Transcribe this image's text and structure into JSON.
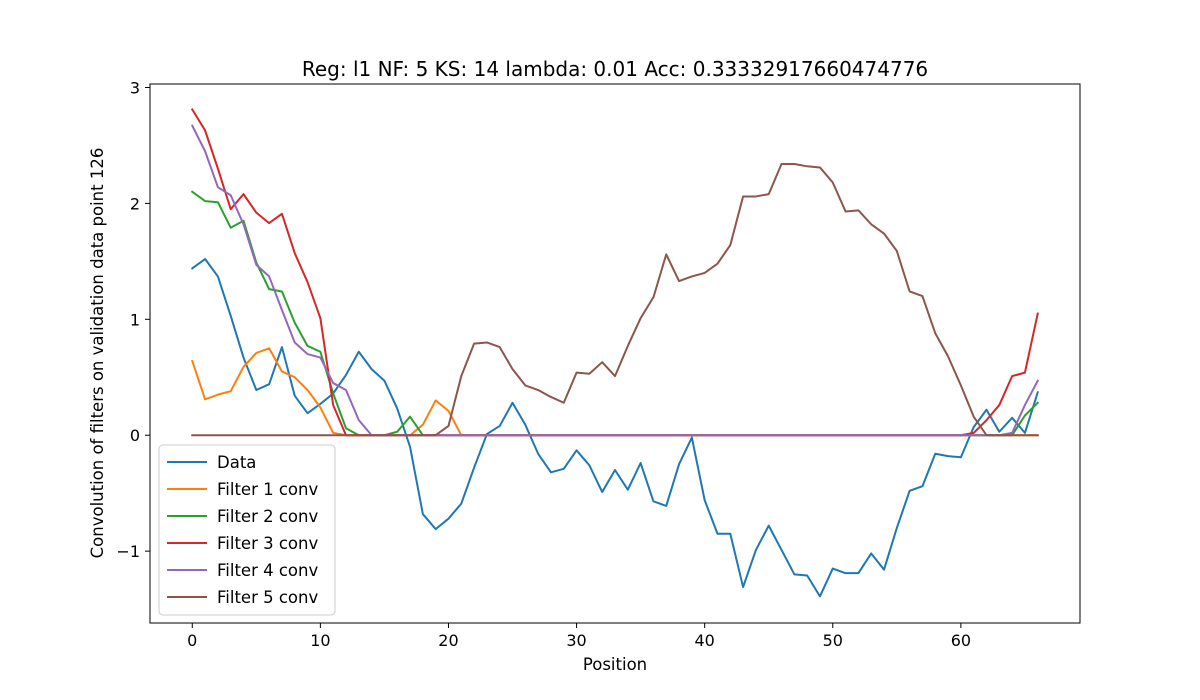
{
  "chart_data": {
    "type": "line",
    "title": "Reg: l1  NF: 5  KS: 14  lambda: 0.01 Acc: 0.33332917660474776",
    "xlabel": "Position",
    "ylabel": "Convolution of filters on validation data point 126",
    "xlim": [
      -3.3,
      69.3
    ],
    "ylim": [
      -1.62,
      3.03
    ],
    "xticks": [
      0,
      10,
      20,
      30,
      40,
      50,
      60
    ],
    "yticks": [
      -1,
      0,
      1,
      2,
      3
    ],
    "ytick_labels": [
      "−1",
      "0",
      "1",
      "2",
      "3"
    ],
    "grid": false,
    "legend_position": "lower-left",
    "series": [
      {
        "name": "Data",
        "color": "#1f77b4",
        "values": [
          1.44,
          1.52,
          1.37,
          1.03,
          0.67,
          0.39,
          0.44,
          0.76,
          0.34,
          0.19,
          0.27,
          0.36,
          0.52,
          0.72,
          0.57,
          0.47,
          0.23,
          -0.1,
          -0.68,
          -0.81,
          -0.72,
          -0.59,
          -0.28,
          0.01,
          0.08,
          0.28,
          0.09,
          -0.16,
          -0.32,
          -0.29,
          -0.13,
          -0.26,
          -0.49,
          -0.3,
          -0.47,
          -0.24,
          -0.57,
          -0.61,
          -0.25,
          -0.02,
          -0.56,
          -0.85,
          -0.85,
          -1.31,
          -0.99,
          -0.78,
          -0.99,
          -1.2,
          -1.21,
          -1.39,
          -1.15,
          -1.19,
          -1.19,
          -1.02,
          -1.16,
          -0.8,
          -0.48,
          -0.44,
          -0.16,
          -0.18,
          -0.19,
          0.07,
          0.22,
          0.03,
          0.15,
          0.02,
          0.37
        ]
      },
      {
        "name": "Filter 1 conv",
        "color": "#ff7f0e",
        "values": [
          0.64,
          0.31,
          0.35,
          0.38,
          0.59,
          0.71,
          0.75,
          0.55,
          0.5,
          0.39,
          0.24,
          0.02,
          0.0,
          0.0,
          0.0,
          0.0,
          0.0,
          0.0,
          0.09,
          0.3,
          0.21,
          0.0,
          0.0,
          0.0,
          0.0,
          0.0,
          0.0,
          0.0,
          0.0,
          0.0,
          0.0,
          0.0,
          0.0,
          0.0,
          0.0,
          0.0,
          0.0,
          0.0,
          0.0,
          0.0,
          0.0,
          0.0,
          0.0,
          0.0,
          0.0,
          0.0,
          0.0,
          0.0,
          0.0,
          0.0,
          0.0,
          0.0,
          0.0,
          0.0,
          0.0,
          0.0,
          0.0,
          0.0,
          0.0,
          0.0,
          0.0,
          0.0,
          0.0,
          0.0,
          0.0,
          0.0,
          0.0
        ]
      },
      {
        "name": "Filter 2 conv",
        "color": "#2ca02c",
        "values": [
          2.1,
          2.02,
          2.01,
          1.79,
          1.85,
          1.49,
          1.26,
          1.24,
          0.97,
          0.77,
          0.72,
          0.36,
          0.06,
          0.0,
          0.0,
          0.0,
          0.03,
          0.16,
          0.0,
          0.0,
          0.0,
          0.0,
          0.0,
          0.0,
          0.0,
          0.0,
          0.0,
          0.0,
          0.0,
          0.0,
          0.0,
          0.0,
          0.0,
          0.0,
          0.0,
          0.0,
          0.0,
          0.0,
          0.0,
          0.0,
          0.0,
          0.0,
          0.0,
          0.0,
          0.0,
          0.0,
          0.0,
          0.0,
          0.0,
          0.0,
          0.0,
          0.0,
          0.0,
          0.0,
          0.0,
          0.0,
          0.0,
          0.0,
          0.0,
          0.0,
          0.0,
          0.0,
          0.0,
          0.0,
          0.0,
          0.17,
          0.28
        ]
      },
      {
        "name": "Filter 3 conv",
        "color": "#d62728",
        "values": [
          2.81,
          2.63,
          2.3,
          1.95,
          2.08,
          1.92,
          1.83,
          1.91,
          1.57,
          1.32,
          1.01,
          0.26,
          0.0,
          0.0,
          0.0,
          0.0,
          0.0,
          0.0,
          0.0,
          0.0,
          0.0,
          0.0,
          0.0,
          0.0,
          0.0,
          0.0,
          0.0,
          0.0,
          0.0,
          0.0,
          0.0,
          0.0,
          0.0,
          0.0,
          0.0,
          0.0,
          0.0,
          0.0,
          0.0,
          0.0,
          0.0,
          0.0,
          0.0,
          0.0,
          0.0,
          0.0,
          0.0,
          0.0,
          0.0,
          0.0,
          0.0,
          0.0,
          0.0,
          0.0,
          0.0,
          0.0,
          0.0,
          0.0,
          0.0,
          0.0,
          0.0,
          0.02,
          0.13,
          0.26,
          0.51,
          0.54,
          1.05
        ]
      },
      {
        "name": "Filter 4 conv",
        "color": "#9467bd",
        "values": [
          2.67,
          2.45,
          2.14,
          2.07,
          1.82,
          1.47,
          1.37,
          1.08,
          0.8,
          0.7,
          0.67,
          0.45,
          0.39,
          0.13,
          0.0,
          0.0,
          0.0,
          0.0,
          0.0,
          0.0,
          0.0,
          0.0,
          0.0,
          0.0,
          0.0,
          0.0,
          0.0,
          0.0,
          0.0,
          0.0,
          0.0,
          0.0,
          0.0,
          0.0,
          0.0,
          0.0,
          0.0,
          0.0,
          0.0,
          0.0,
          0.0,
          0.0,
          0.0,
          0.0,
          0.0,
          0.0,
          0.0,
          0.0,
          0.0,
          0.0,
          0.0,
          0.0,
          0.0,
          0.0,
          0.0,
          0.0,
          0.0,
          0.0,
          0.0,
          0.0,
          0.0,
          0.0,
          0.0,
          0.0,
          0.02,
          0.26,
          0.47
        ]
      },
      {
        "name": "Filter 5 conv",
        "color": "#8c564b",
        "values": [
          0.0,
          0.0,
          0.0,
          0.0,
          0.0,
          0.0,
          0.0,
          0.0,
          0.0,
          0.0,
          0.0,
          0.0,
          0.0,
          0.0,
          0.0,
          0.0,
          0.0,
          0.0,
          0.0,
          0.0,
          0.08,
          0.51,
          0.79,
          0.8,
          0.76,
          0.57,
          0.43,
          0.39,
          0.33,
          0.28,
          0.54,
          0.53,
          0.63,
          0.51,
          0.77,
          1.01,
          1.19,
          1.56,
          1.33,
          1.37,
          1.4,
          1.48,
          1.64,
          2.06,
          2.06,
          2.08,
          2.34,
          2.34,
          2.32,
          2.31,
          2.18,
          1.93,
          1.94,
          1.82,
          1.74,
          1.59,
          1.24,
          1.2,
          0.88,
          0.68,
          0.43,
          0.16,
          0.0,
          0.0,
          0.0,
          0.0,
          0.0
        ]
      }
    ]
  }
}
